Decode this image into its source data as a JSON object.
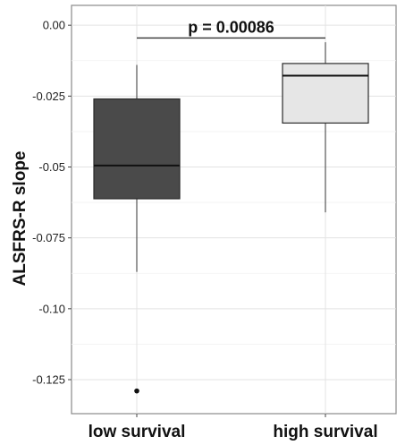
{
  "chart_data": {
    "type": "box",
    "ylabel": "ALSFRS-R slope",
    "xlabel": "",
    "ylim": [
      -0.137,
      0.007
    ],
    "yticks": [
      0.0,
      -0.025,
      -0.05,
      -0.075,
      -0.1,
      -0.125
    ],
    "ytick_labels": [
      "0.00",
      "-0.025",
      "-0.05",
      "-0.075",
      "-0.10",
      "-0.125"
    ],
    "grid": true,
    "categories": [
      "low survival",
      "high survival"
    ],
    "boxes": [
      {
        "category": "low survival",
        "whisker_high": -0.014,
        "q3": -0.026,
        "median": -0.0495,
        "q1": -0.0612,
        "whisker_low": -0.087,
        "outliers": [
          -0.129
        ],
        "fill": "#4a4a4a"
      },
      {
        "category": "high survival",
        "whisker_high": -0.006,
        "q3": -0.0135,
        "median": -0.0178,
        "q1": -0.0345,
        "whisker_low": -0.066,
        "outliers": [],
        "fill": "#e6e6e6"
      }
    ],
    "annotation": {
      "text": "p = 0.00086",
      "y": -0.0045
    }
  }
}
